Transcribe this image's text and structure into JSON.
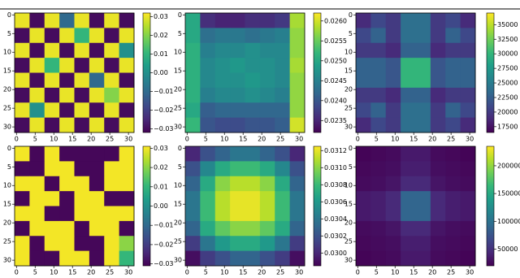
{
  "chart_data": [
    {
      "type": "heatmap",
      "cmap": "viridis",
      "xlim": [
        -0.5,
        31.5
      ],
      "ylim": [
        -0.5,
        31.5
      ],
      "invert_y": true,
      "xticks": [
        0,
        5,
        10,
        15,
        20,
        25,
        30
      ],
      "yticks": [
        0,
        5,
        10,
        15,
        20,
        25,
        30
      ],
      "clim": [
        -0.032,
        0.032
      ],
      "cticks": [
        {
          "value": -0.03,
          "label": "−0.03"
        },
        {
          "value": -0.02,
          "label": "−0.02"
        },
        {
          "value": -0.01,
          "label": "−0.01"
        },
        {
          "value": 0,
          "label": "0.00"
        },
        0.01,
        0.02,
        0.03
      ],
      "values": [
        [
          0.03,
          -0.03,
          0.03,
          -0.01,
          0.03,
          -0.03,
          0.03,
          -0.03
        ],
        [
          -0.03,
          0.03,
          -0.03,
          0.03,
          0.01,
          0.03,
          -0.03,
          0.03
        ],
        [
          0.03,
          -0.03,
          0.03,
          -0.03,
          0.03,
          -0.03,
          0.03,
          0.0
        ],
        [
          -0.03,
          0.03,
          0.01,
          0.03,
          -0.03,
          0.03,
          -0.03,
          0.03
        ],
        [
          0.03,
          -0.03,
          0.03,
          -0.03,
          0.03,
          -0.01,
          0.03,
          -0.03
        ],
        [
          -0.03,
          0.03,
          -0.03,
          0.03,
          -0.03,
          0.03,
          0.02,
          0.03
        ],
        [
          0.03,
          0.0,
          0.03,
          -0.03,
          0.03,
          -0.03,
          0.03,
          -0.03
        ],
        [
          -0.03,
          0.03,
          -0.03,
          0.03,
          -0.03,
          0.03,
          -0.03,
          0.03
        ]
      ]
    },
    {
      "type": "heatmap",
      "cmap": "viridis",
      "xlim": [
        -0.5,
        31.5
      ],
      "ylim": [
        -0.5,
        31.5
      ],
      "invert_y": true,
      "xticks": [
        0,
        5,
        10,
        15,
        20,
        25,
        30
      ],
      "yticks": [
        0,
        5,
        10,
        15,
        20,
        25,
        30
      ],
      "clim": [
        0.0232,
        0.0262
      ],
      "cticks": [
        0.0235,
        {
          "value": 0.024,
          "label": "0.0240"
        },
        0.0245,
        {
          "value": 0.025,
          "label": "0.0250"
        },
        0.0255,
        {
          "value": 0.026,
          "label": "0.0260"
        }
      ],
      "values": [
        [
          0.025,
          0.0236,
          0.0235,
          0.0235,
          0.0236,
          0.0236,
          0.0237,
          0.0258
        ],
        [
          0.025,
          0.0243,
          0.0244,
          0.0244,
          0.0243,
          0.0244,
          0.0245,
          0.0257
        ],
        [
          0.0251,
          0.0245,
          0.0246,
          0.0246,
          0.0247,
          0.0246,
          0.0246,
          0.0257
        ],
        [
          0.0251,
          0.0246,
          0.0247,
          0.0248,
          0.0247,
          0.0247,
          0.0246,
          0.0258
        ],
        [
          0.0251,
          0.0246,
          0.0247,
          0.0247,
          0.0248,
          0.0247,
          0.0246,
          0.0257
        ],
        [
          0.0251,
          0.0245,
          0.0246,
          0.0246,
          0.0247,
          0.0246,
          0.0245,
          0.0257
        ],
        [
          0.025,
          0.0241,
          0.0242,
          0.0242,
          0.0242,
          0.0242,
          0.0242,
          0.0257
        ],
        [
          0.0252,
          0.024,
          0.0239,
          0.0239,
          0.024,
          0.024,
          0.0241,
          0.026
        ]
      ]
    },
    {
      "type": "heatmap",
      "cmap": "viridis",
      "xlim": [
        -0.5,
        31.5
      ],
      "ylim": [
        -0.5,
        31.5
      ],
      "invert_y": true,
      "xticks": [
        0,
        5,
        10,
        15,
        20,
        25,
        30
      ],
      "yticks": [
        0,
        5,
        10,
        15,
        20,
        25,
        30
      ],
      "clim": [
        16500,
        37000
      ],
      "cticks": [
        17500,
        20000,
        22500,
        25000,
        27500,
        30000,
        32500,
        35000
      ],
      "values": [
        [
          19000,
          21000,
          20000,
          24000,
          24000,
          20000,
          21000,
          19000
        ],
        [
          21000,
          23000,
          20000,
          24000,
          24000,
          20000,
          23000,
          21000
        ],
        [
          20000,
          20000,
          19000,
          23000,
          23000,
          19000,
          20000,
          20000
        ],
        [
          23000,
          23000,
          22000,
          30000,
          30000,
          22000,
          23000,
          23000
        ],
        [
          23000,
          23000,
          22000,
          30000,
          30000,
          22000,
          23000,
          23000
        ],
        [
          20000,
          20000,
          19000,
          23000,
          23000,
          19000,
          20000,
          20000
        ],
        [
          21000,
          23000,
          20000,
          24000,
          24000,
          20000,
          23000,
          21000
        ],
        [
          19000,
          21000,
          20000,
          24000,
          24000,
          20000,
          21000,
          19000
        ]
      ]
    },
    {
      "type": "heatmap",
      "cmap": "viridis",
      "xlim": [
        -0.5,
        31.5
      ],
      "ylim": [
        -0.5,
        31.5
      ],
      "invert_y": true,
      "xticks": [
        0,
        5,
        10,
        15,
        20,
        25,
        30
      ],
      "yticks": [
        0,
        5,
        10,
        15,
        20,
        25,
        30
      ],
      "clim": [
        -0.031,
        0.031
      ],
      "cticks": [
        {
          "value": -0.03,
          "label": "−0.03"
        },
        {
          "value": -0.02,
          "label": "−0.02"
        },
        {
          "value": -0.01,
          "label": "−0.01"
        },
        {
          "value": 0,
          "label": "0.00"
        },
        0.01,
        0.02,
        0.03
      ],
      "values": [
        [
          0.03,
          -0.03,
          0.03,
          -0.03,
          -0.03,
          -0.03,
          -0.03,
          0.03
        ],
        [
          -0.03,
          -0.03,
          0.03,
          0.03,
          -0.03,
          -0.03,
          0.03,
          0.03
        ],
        [
          0.03,
          0.03,
          -0.03,
          0.03,
          0.03,
          -0.03,
          0.03,
          0.03
        ],
        [
          -0.03,
          0.03,
          0.03,
          -0.03,
          0.03,
          0.03,
          -0.03,
          -0.03
        ],
        [
          0.03,
          0.03,
          -0.03,
          -0.03,
          0.03,
          0.03,
          0.03,
          0.03
        ],
        [
          -0.03,
          0.03,
          0.03,
          0.03,
          -0.03,
          0.03,
          0.03,
          -0.03
        ],
        [
          0.03,
          -0.03,
          0.03,
          0.03,
          -0.03,
          -0.03,
          0.03,
          0.02
        ],
        [
          0.03,
          -0.03,
          -0.03,
          0.03,
          0.03,
          -0.03,
          0.03,
          0.01
        ]
      ]
    },
    {
      "type": "heatmap",
      "cmap": "viridis",
      "xlim": [
        -0.5,
        31.5
      ],
      "ylim": [
        -0.5,
        31.5
      ],
      "invert_y": true,
      "xticks": [
        0,
        5,
        10,
        15,
        20,
        25,
        30
      ],
      "yticks": [
        0,
        5,
        10,
        15,
        20,
        25,
        30
      ],
      "clim": [
        0.02985,
        0.03125
      ],
      "cticks": [
        {
          "value": 0.03,
          "label": "0.0300"
        },
        0.0302,
        0.0304,
        0.0306,
        0.0308,
        {
          "value": 0.031,
          "label": "0.0310"
        },
        0.0312
      ],
      "values": [
        [
          0.03,
          0.0302,
          0.0303,
          0.0304,
          0.0304,
          0.0303,
          0.0302,
          0.03
        ],
        [
          0.0302,
          0.0305,
          0.0307,
          0.0308,
          0.0308,
          0.0307,
          0.0305,
          0.0302
        ],
        [
          0.0303,
          0.0307,
          0.031,
          0.0311,
          0.0311,
          0.031,
          0.0307,
          0.0303
        ],
        [
          0.0304,
          0.0308,
          0.0311,
          0.0312,
          0.0312,
          0.0311,
          0.0308,
          0.0304
        ],
        [
          0.0304,
          0.0308,
          0.0311,
          0.0312,
          0.0312,
          0.0311,
          0.0308,
          0.0304
        ],
        [
          0.0303,
          0.0307,
          0.0309,
          0.031,
          0.031,
          0.0309,
          0.0307,
          0.0303
        ],
        [
          0.0301,
          0.0304,
          0.0306,
          0.0307,
          0.0307,
          0.0306,
          0.0304,
          0.0301
        ],
        [
          0.0299,
          0.0301,
          0.0302,
          0.0303,
          0.0303,
          0.0302,
          0.0301,
          0.0299
        ]
      ]
    },
    {
      "type": "heatmap",
      "cmap": "viridis",
      "xlim": [
        -0.5,
        31.5
      ],
      "ylim": [
        -0.5,
        31.5
      ],
      "invert_y": true,
      "xticks": [
        0,
        5,
        10,
        15,
        20,
        25,
        30
      ],
      "yticks": [
        0,
        5,
        10,
        15,
        20,
        25,
        30
      ],
      "clim": [
        20000,
        235000
      ],
      "cticks": [
        50000,
        100000,
        150000,
        200000
      ],
      "values": [
        [
          22000,
          24000,
          26000,
          35000,
          35000,
          26000,
          24000,
          22000
        ],
        [
          24000,
          26000,
          28000,
          38000,
          38000,
          28000,
          26000,
          24000
        ],
        [
          26000,
          28000,
          32000,
          45000,
          45000,
          32000,
          28000,
          26000
        ],
        [
          35000,
          38000,
          45000,
          90000,
          90000,
          45000,
          38000,
          35000
        ],
        [
          35000,
          38000,
          45000,
          90000,
          90000,
          45000,
          38000,
          35000
        ],
        [
          26000,
          28000,
          32000,
          45000,
          45000,
          32000,
          28000,
          26000
        ],
        [
          24000,
          26000,
          28000,
          38000,
          38000,
          28000,
          26000,
          24000
        ],
        [
          22000,
          24000,
          26000,
          35000,
          35000,
          26000,
          24000,
          22000
        ]
      ]
    }
  ]
}
